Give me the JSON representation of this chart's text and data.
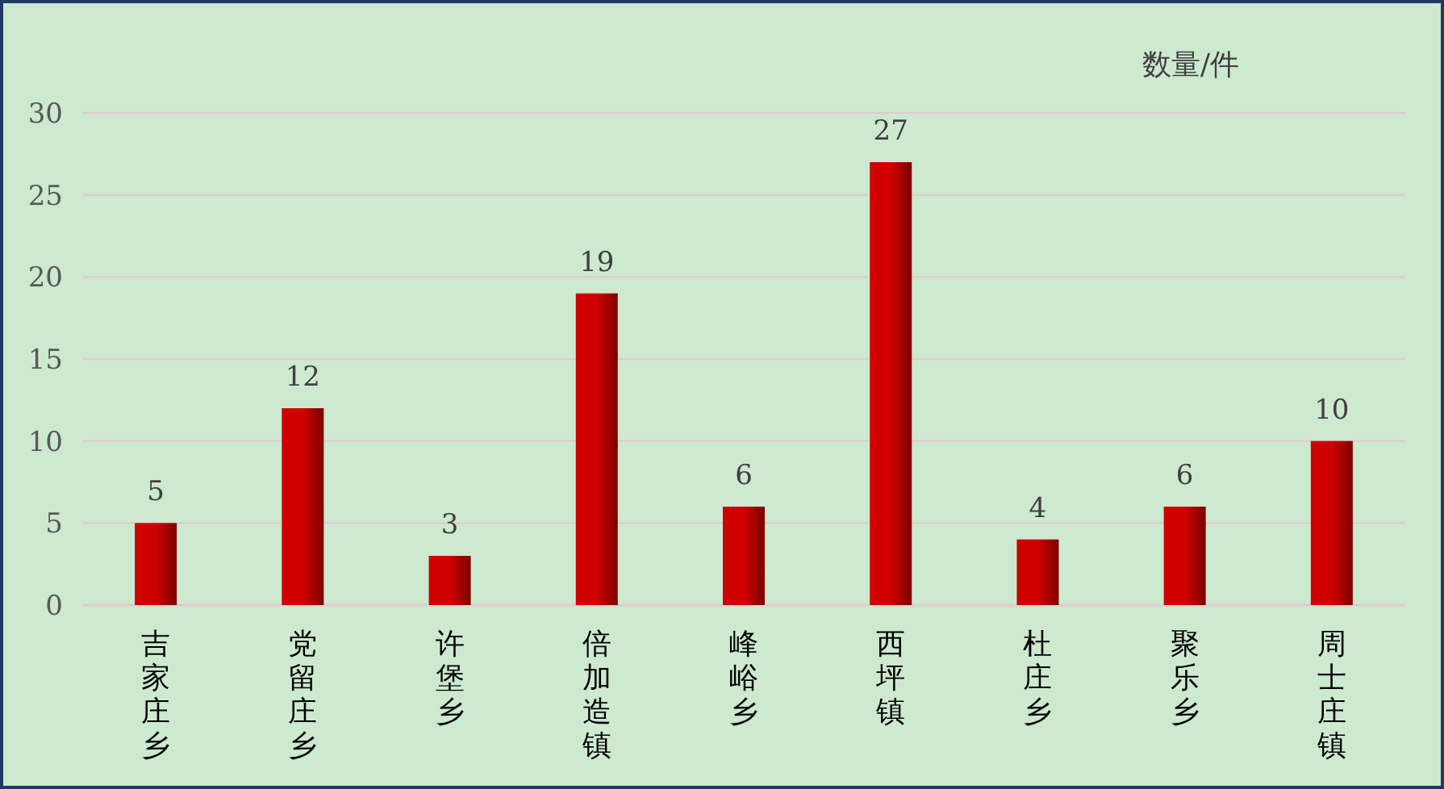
{
  "chart_data": {
    "type": "bar",
    "ylabel": "数量/件",
    "categories": [
      "吉家庄乡",
      "党留庄乡",
      "许堡乡",
      "倍加造镇",
      "峰峪乡",
      "西坪镇",
      "杜庄乡",
      "聚乐乡",
      "周士庄镇"
    ],
    "values": [
      5,
      12,
      3,
      19,
      6,
      27,
      4,
      6,
      10
    ],
    "color": "#d00000",
    "ylim": [
      0,
      30
    ],
    "yticks": [
      0,
      5,
      10,
      15,
      20,
      25,
      30
    ],
    "grid": "y",
    "data_labels": true
  }
}
